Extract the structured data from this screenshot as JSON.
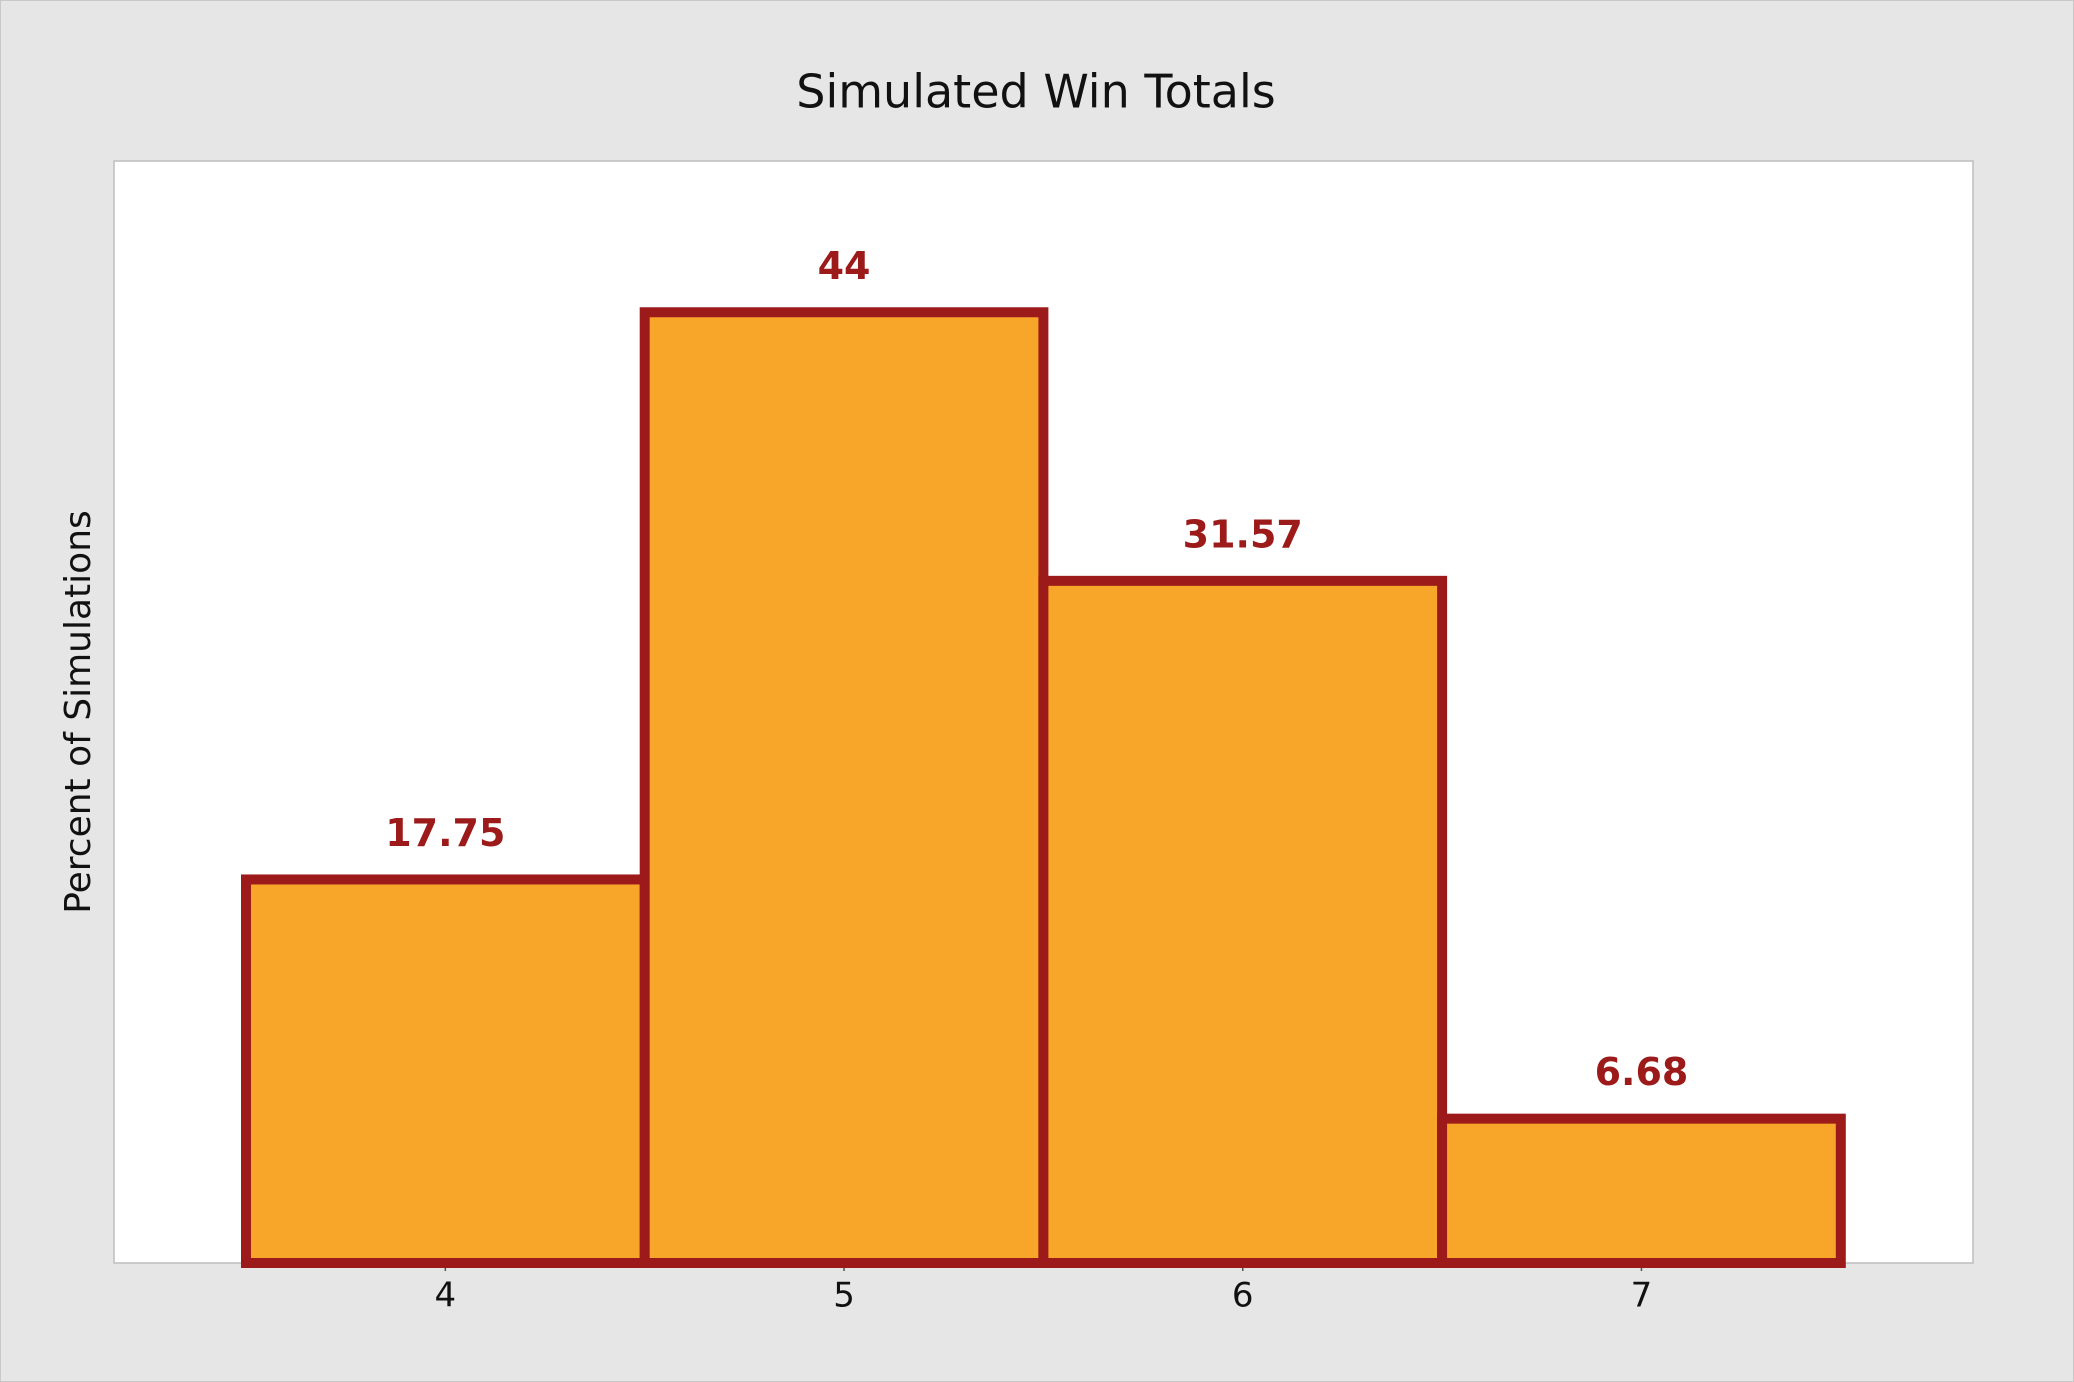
{
  "chart_data": {
    "type": "bar",
    "title": "Simulated Win Totals",
    "y_label": "Percent of Simulations",
    "categories": [
      "4",
      "5",
      "6",
      "7"
    ],
    "values": [
      17.75,
      44,
      31.57,
      6.68
    ],
    "color": "#f8a62a",
    "edge_color": "#9c1a1a",
    "value_label_color": "#9c1a1a",
    "ylim": [
      0,
      51
    ]
  }
}
